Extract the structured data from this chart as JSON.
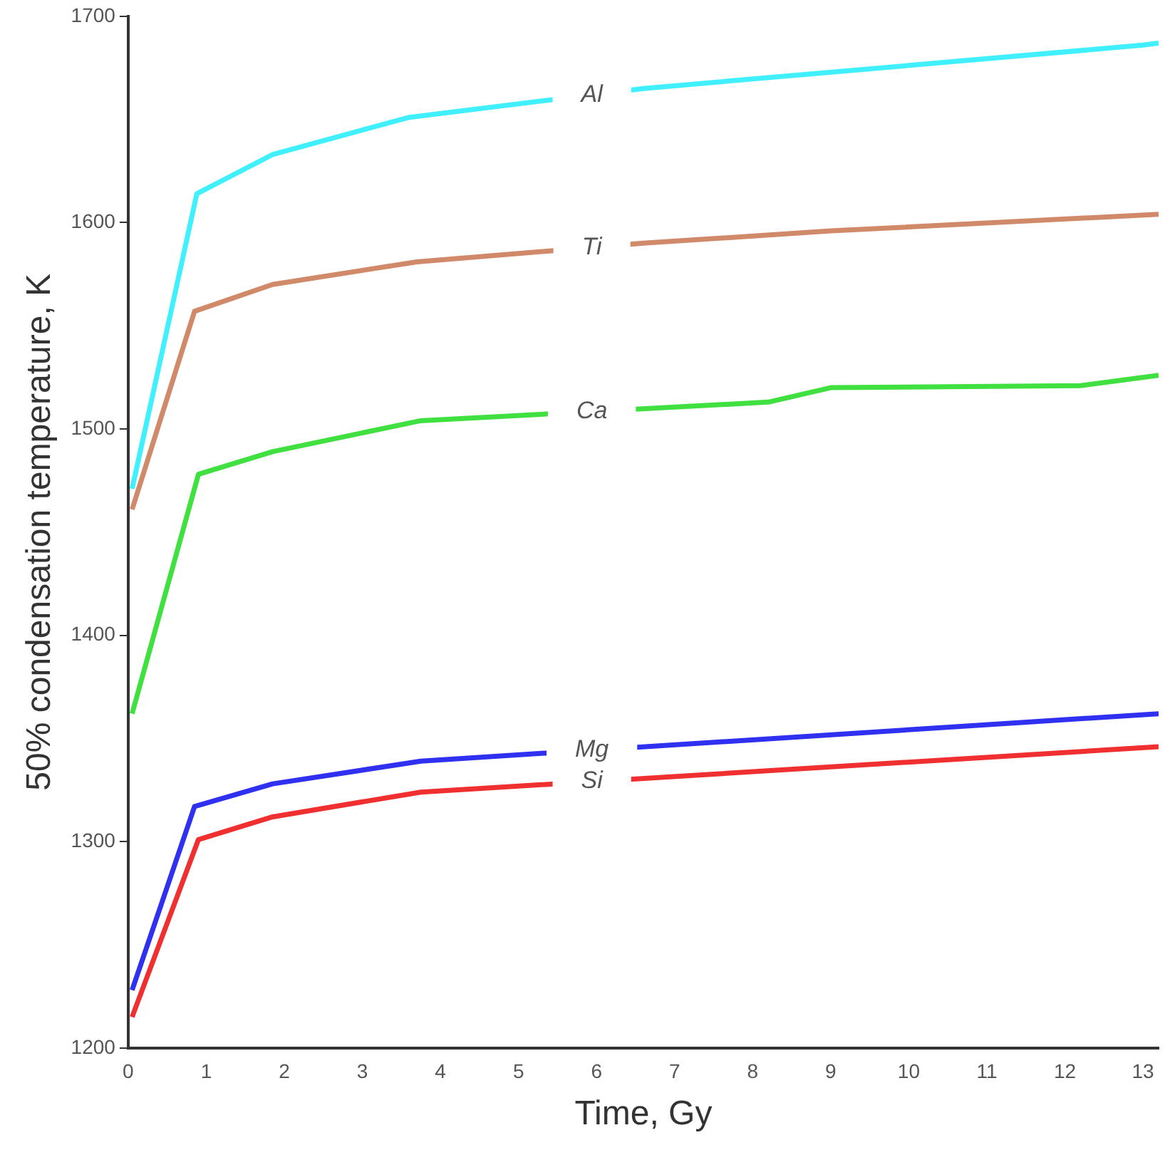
{
  "chart_data": {
    "type": "line",
    "xlabel": "Time, Gy",
    "ylabel": "50% condensation temperature, K",
    "xlim": [
      0,
      13.2
    ],
    "xticks": [
      0,
      1,
      2,
      3,
      4,
      5,
      6,
      7,
      8,
      9,
      10,
      11,
      12,
      13
    ],
    "ylim": [
      1200,
      1700
    ],
    "yticks": [
      1200,
      1300,
      1400,
      1500,
      1600,
      1700
    ],
    "grid": false,
    "legend": false,
    "marker": "none",
    "line_style": "solid",
    "series": [
      {
        "name": "Al",
        "color": "#40f0ff",
        "x": [
          0.05,
          0.88,
          1.85,
          3.6,
          6.6,
          13.0,
          13.2
        ],
        "values": [
          1471,
          1614,
          1633,
          1651,
          1665,
          1686,
          1687
        ]
      },
      {
        "name": "Ti",
        "color": "#d08a6a",
        "x": [
          0.05,
          0.85,
          1.85,
          3.7,
          6.6,
          9.0,
          13.2
        ],
        "values": [
          1461,
          1557,
          1570,
          1581,
          1590,
          1596,
          1604
        ]
      },
      {
        "name": "Ca",
        "color": "#40e040",
        "x": [
          0.05,
          0.9,
          1.85,
          3.75,
          8.2,
          9.0,
          12.2,
          13.2
        ],
        "values": [
          1362,
          1478,
          1489,
          1504,
          1513,
          1520,
          1521,
          1526
        ]
      },
      {
        "name": "Mg",
        "color": "#3030f0",
        "x": [
          0.05,
          0.85,
          1.85,
          3.75,
          13.2
        ],
        "values": [
          1228,
          1317,
          1328,
          1339,
          1362
        ]
      },
      {
        "name": "Si",
        "color": "#f03030",
        "x": [
          0.05,
          0.9,
          1.85,
          3.75,
          13.2
        ],
        "values": [
          1215,
          1301,
          1312,
          1324,
          1346
        ]
      }
    ]
  }
}
